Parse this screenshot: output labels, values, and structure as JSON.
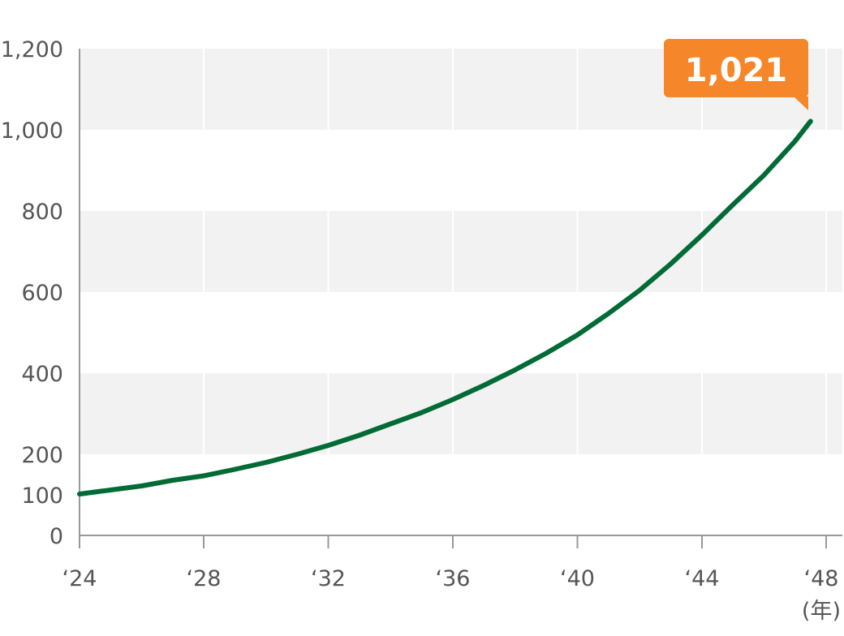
{
  "chart_data": {
    "type": "line",
    "x": [
      2024,
      2025,
      2026,
      2027,
      2028,
      2029,
      2030,
      2031,
      2032,
      2033,
      2034,
      2035,
      2036,
      2037,
      2038,
      2039,
      2040,
      2041,
      2042,
      2043,
      2044,
      2045,
      2046,
      2047,
      2047.5
    ],
    "series": [
      {
        "values": [
          102,
          112,
          122,
          136,
          147,
          163,
          180,
          200,
          222,
          247,
          275,
          303,
          335,
          370,
          408,
          449,
          494,
          547,
          604,
          669,
          740,
          815,
          888,
          972,
          1021
        ],
        "color": "#006b35"
      }
    ],
    "xlim": [
      2024,
      2048
    ],
    "ylim": [
      0,
      1200
    ],
    "x_ticks": [
      "‘24",
      "‘28",
      "‘32",
      "‘36",
      "‘40",
      "‘44",
      "‘48"
    ],
    "y_ticks": [
      "0",
      "100",
      "200",
      "400",
      "600",
      "800",
      "1,000",
      "1,200"
    ],
    "x_unit": "(年)",
    "grid": true,
    "band_color": "#f2f2f2",
    "callout": {
      "label": "1,021",
      "color": "#f5862a"
    }
  }
}
